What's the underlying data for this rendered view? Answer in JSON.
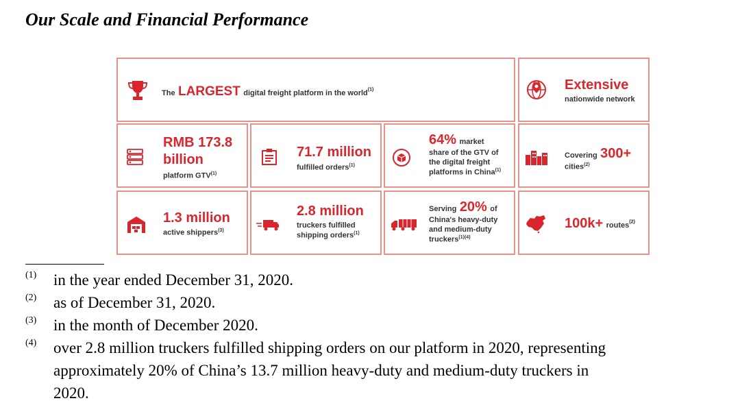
{
  "title": "Our Scale and Financial Performance",
  "infographic": {
    "largest": {
      "pre": "The",
      "big": "LARGEST",
      "post": "digital freight platform in the world",
      "sup": "(1)",
      "icon": "trophy-icon"
    },
    "extensive": {
      "big": "Extensive",
      "sub": "nationwide network",
      "icon": "globe-location-icon"
    },
    "gtv": {
      "big1": "RMB 173.8",
      "big2": "billion",
      "sub": "platform GTV",
      "sup": "(1)",
      "icon": "server-stack-icon"
    },
    "orders": {
      "big": "71.7 million",
      "sub": "fulfilled orders",
      "sup": "(1)",
      "icon": "clipboard-list-icon"
    },
    "market": {
      "big": "64%",
      "word": "market",
      "line1": "share of the GTV of",
      "line2": "the digital freight",
      "line3": "platforms in China",
      "sup": "(1)",
      "icon": "box-cycle-icon"
    },
    "cities": {
      "pre": "Covering",
      "big": "300+",
      "sub": "cities",
      "sup": "(2)",
      "icon": "city-buildings-icon"
    },
    "shippers": {
      "big": "1.3 million",
      "sub": "active shippers",
      "sup": "(3)",
      "icon": "warehouse-icon"
    },
    "truckers": {
      "big": "2.8 million",
      "line1": "truckers fulfilled",
      "line2": "shipping orders",
      "sup": "(1)",
      "icon": "truck-moving-icon"
    },
    "serving": {
      "pre": "Serving",
      "big": "20%",
      "post": "of",
      "line1": "China's heavy-duty",
      "line2": "and medium-duty",
      "line3": "truckers",
      "sup": "(1)(4)",
      "icon": "semi-truck-icon"
    },
    "routes": {
      "big": "100k+",
      "sub": "routes",
      "sup": "(2)",
      "icon": "china-map-icon"
    }
  },
  "footnotes": [
    {
      "num": "(1)",
      "line1": "in the year ended December 31, 2020."
    },
    {
      "num": "(2)",
      "line1": "as of December 31, 2020."
    },
    {
      "num": "(3)",
      "line1": "in the month of December 2020."
    },
    {
      "num": "(4)",
      "line1": "over 2.8 million truckers fulfilled shipping orders on our platform in 2020, representing",
      "line2": "approximately 20% of China’s 13.7 million heavy-duty and medium-duty truckers in",
      "line3": "2020."
    }
  ]
}
